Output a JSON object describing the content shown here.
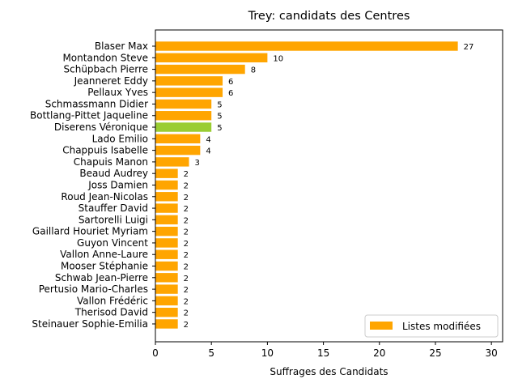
{
  "chart_data": {
    "type": "bar",
    "orientation": "horizontal",
    "title": "Trey: candidats des Centres",
    "xlabel": "Suffrages des Candidats",
    "ylabel": "",
    "xlim": [
      0,
      31
    ],
    "xticks": [
      0,
      5,
      10,
      15,
      20,
      25,
      30
    ],
    "grid": false,
    "legend": {
      "placement": "lower-right",
      "entries": [
        "Listes modifiées"
      ]
    },
    "colors": {
      "default": "#ffa500",
      "highlight": "#9acd32"
    },
    "categories": [
      "Blaser Max",
      "Montandon Steve",
      "Schüpbach Pierre",
      "Jeanneret Eddy",
      "Pellaux Yves",
      "Schmassmann Didier",
      "Bottlang-Pittet Jaqueline",
      "Diserens Véronique",
      "Lado Emilio",
      "Chappuis Isabelle",
      "Chapuis Manon",
      "Beaud Audrey",
      "Joss Damien",
      "Roud Jean-Nicolas",
      "Stauffer David",
      "Sartorelli Luigi",
      "Gaillard Houriet Myriam",
      "Guyon Vincent",
      "Vallon Anne-Laure",
      "Mooser Stéphanie",
      "Schwab Jean-Pierre",
      "Pertusio Mario-Charles",
      "Vallon Frédéric",
      "Therisod David",
      "Steinauer Sophie-Emilia"
    ],
    "series": [
      {
        "name": "Listes modifiées",
        "values": [
          27,
          10,
          8,
          6,
          6,
          5,
          5,
          5,
          4,
          4,
          3,
          2,
          2,
          2,
          2,
          2,
          2,
          2,
          2,
          2,
          2,
          2,
          2,
          2,
          2
        ]
      }
    ],
    "highlight_category": "Diserens Véronique"
  }
}
